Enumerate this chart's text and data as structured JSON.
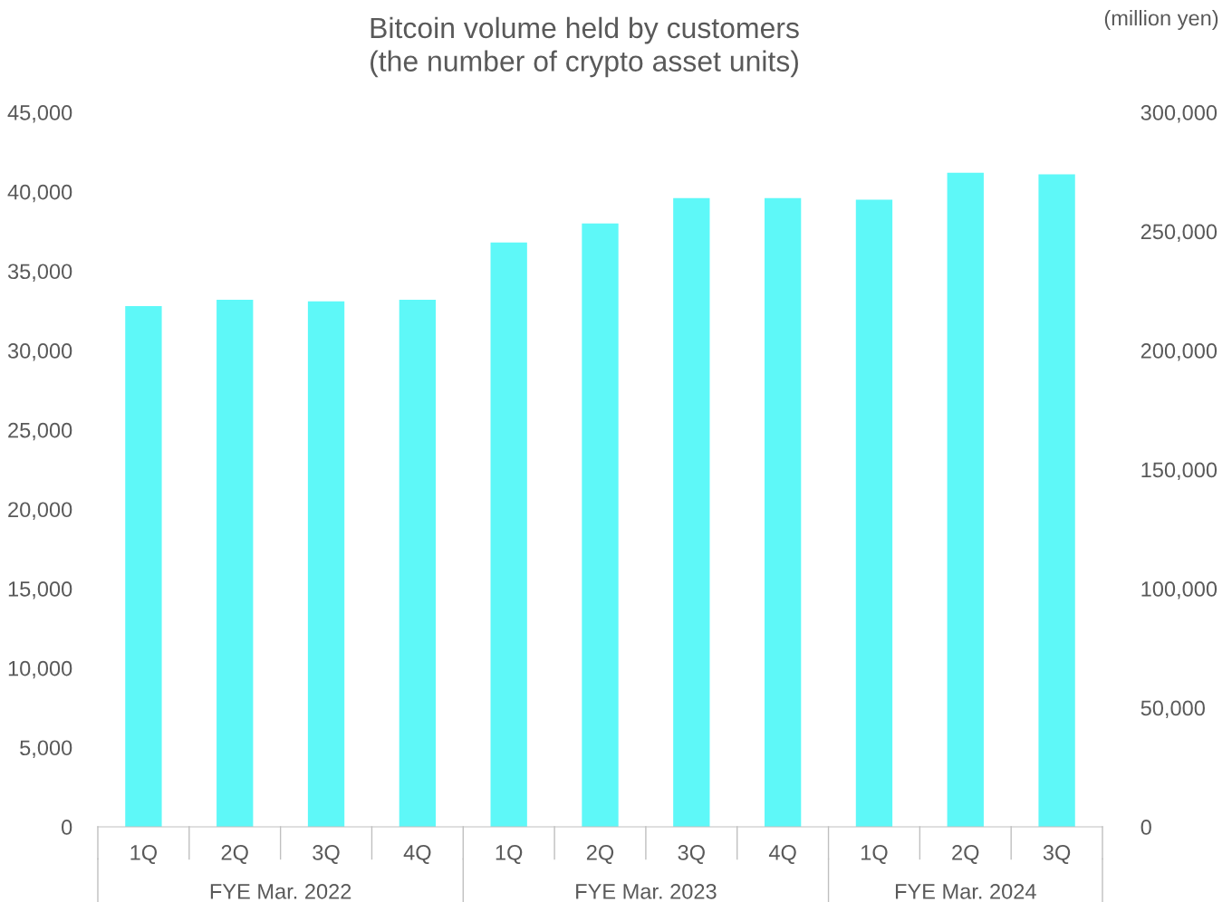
{
  "chart_data": {
    "type": "bar",
    "title": "Bitcoin volume held by customers\n(the number of crypto asset units)",
    "y2label": "(million yen)",
    "categories": [
      "1Q",
      "2Q",
      "3Q",
      "4Q",
      "1Q",
      "2Q",
      "3Q",
      "4Q",
      "1Q",
      "2Q",
      "3Q"
    ],
    "values": [
      32800,
      33200,
      33100,
      33200,
      36800,
      38000,
      39600,
      39600,
      39500,
      41200,
      41100
    ],
    "color": "#5ef8f8",
    "ylim": [
      0,
      45000
    ],
    "yticks": [
      0,
      {
        "value": 5000,
        "label": "5,000"
      },
      {
        "value": 10000,
        "label": "10,000"
      },
      {
        "value": 15000,
        "label": "15,000"
      },
      {
        "value": 20000,
        "label": "20,000"
      },
      {
        "value": 25000,
        "label": "25,000"
      },
      {
        "value": 30000,
        "label": "30,000"
      },
      {
        "value": 35000,
        "label": "35,000"
      },
      {
        "value": 40000,
        "label": "40,000"
      },
      {
        "value": 45000,
        "label": "45,000"
      }
    ],
    "y2lim": [
      0,
      300000
    ],
    "y2ticks": [
      0,
      {
        "value": 50000,
        "label": "50,000"
      },
      {
        "value": 100000,
        "label": "100,000"
      },
      {
        "value": 150000,
        "label": "150,000"
      },
      {
        "value": 200000,
        "label": "200,000"
      },
      {
        "value": 250000,
        "label": "250,000"
      },
      {
        "value": 300000,
        "label": "300,000"
      }
    ],
    "annotations": [
      "FYE Mar. 2022",
      "FYE Mar. 2023",
      "FYE Mar. 2024"
    ],
    "grid": false,
    "legend": false
  }
}
